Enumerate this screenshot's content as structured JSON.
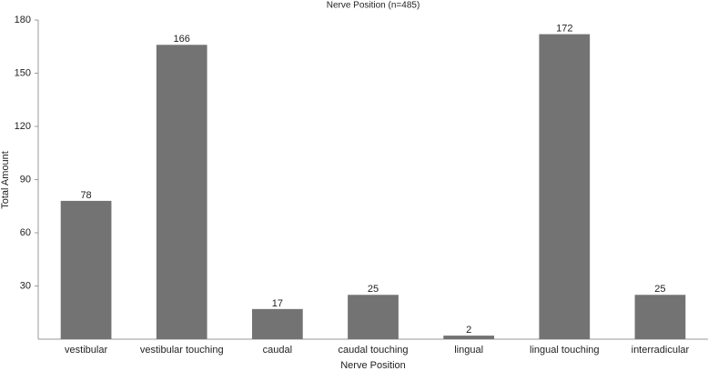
{
  "chart_data": {
    "type": "bar",
    "title": "Nerve Position (n=485)",
    "x_label": "Nerve Position",
    "y_label": "Total Amount",
    "categories": [
      "vestibular",
      "vestibular touching",
      "caudal",
      "caudal touching",
      "lingual",
      "lingual touching",
      "interradicular"
    ],
    "values": [
      78,
      166,
      17,
      25,
      2,
      172,
      25
    ],
    "color": "#737373",
    "ylim": [
      0,
      180
    ],
    "yticks": [
      30,
      60,
      90,
      120,
      150,
      180
    ],
    "grid": false
  }
}
